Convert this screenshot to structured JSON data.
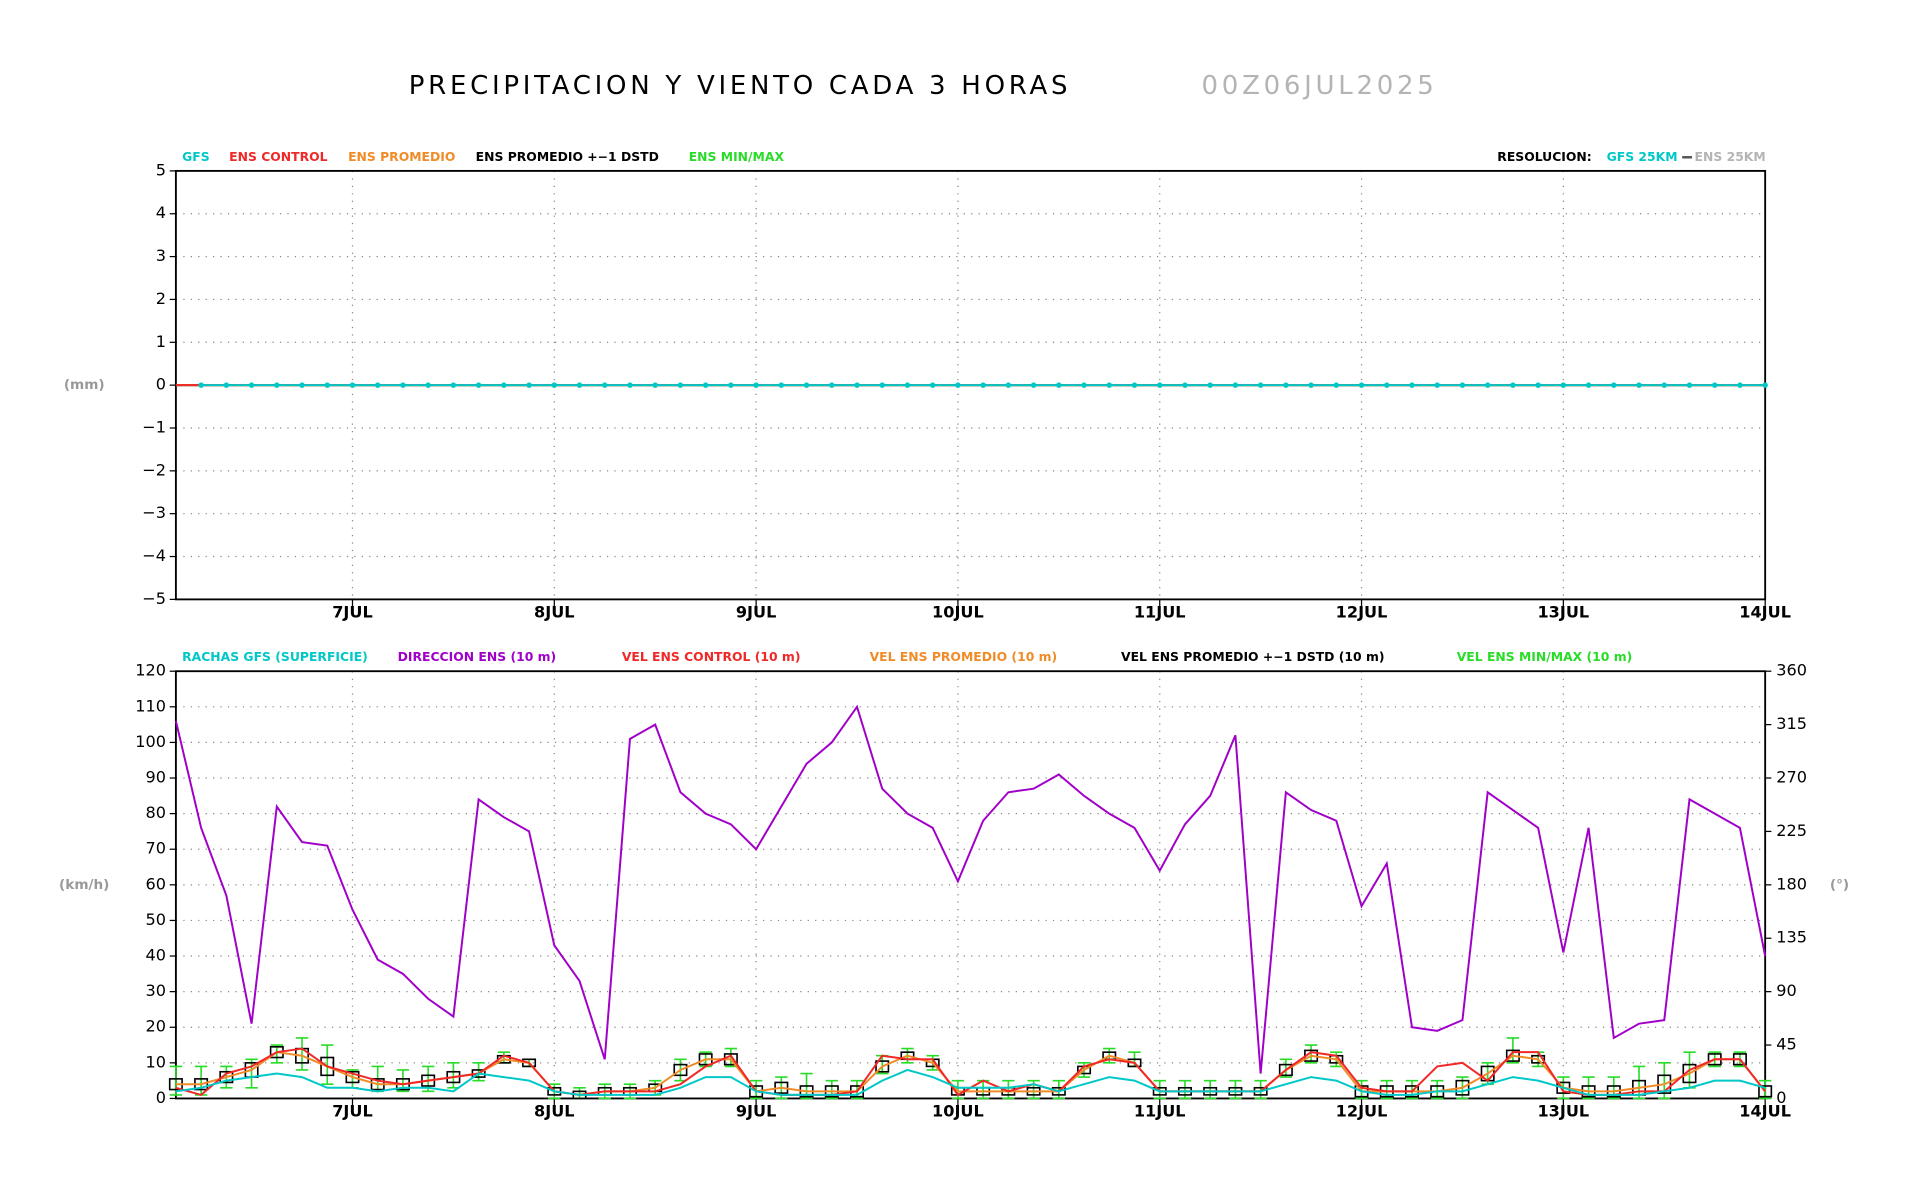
{
  "title": "PRECIPITACION Y VIENTO CADA 3 HORAS",
  "run": "00Z06JUL2025",
  "chart_data": [
    {
      "type": "line",
      "ylabel": "(mm)",
      "grid": true,
      "xlim": [
        6.125,
        14
      ],
      "xticks": [
        {
          "value": 7,
          "label": "7JUL"
        },
        {
          "value": 8,
          "label": "8JUL"
        },
        {
          "value": 9,
          "label": "9JUL"
        },
        {
          "value": 10,
          "label": "10JUL"
        },
        {
          "value": 11,
          "label": "11JUL"
        },
        {
          "value": 12,
          "label": "12JUL"
        },
        {
          "value": 13,
          "label": "13JUL"
        },
        {
          "value": 14,
          "label": "14JUL"
        }
      ],
      "ylim": [
        -5,
        5
      ],
      "yticks": [
        {
          "value": -5,
          "label": "−5"
        },
        {
          "value": -4,
          "label": "−4"
        },
        {
          "value": -3,
          "label": "−3"
        },
        {
          "value": -2,
          "label": "−2"
        },
        {
          "value": -1,
          "label": "−1"
        },
        0,
        1,
        2,
        3,
        4,
        5
      ],
      "x": [
        6.125,
        6.25,
        6.375,
        6.5,
        6.625,
        6.75,
        6.875,
        7,
        7.125,
        7.25,
        7.375,
        7.5,
        7.625,
        7.75,
        7.875,
        8,
        8.125,
        8.25,
        8.375,
        8.5,
        8.625,
        8.75,
        8.875,
        9,
        9.125,
        9.25,
        9.375,
        9.5,
        9.625,
        9.75,
        9.875,
        10,
        10.125,
        10.25,
        10.375,
        10.5,
        10.625,
        10.75,
        10.875,
        11,
        11.125,
        11.25,
        11.375,
        11.5,
        11.625,
        11.75,
        11.875,
        12,
        12.125,
        12.25,
        12.375,
        12.5,
        12.625,
        12.75,
        12.875,
        13,
        13.125,
        13.25,
        13.375,
        13.5,
        13.625,
        13.75,
        13.875,
        14
      ],
      "resolution": {
        "label": "RESOLUCION:",
        "items": [
          {
            "name": "GFS 25KM",
            "color": "#00c8c8"
          },
          {
            "name": "ENS 25KM",
            "color": "#b4b4b4"
          }
        ]
      },
      "series": [
        {
          "name": "GFS",
          "color": "#00c8c8",
          "markers": true,
          "values": [
            null,
            0,
            0,
            0,
            0,
            0,
            0,
            0,
            0,
            0,
            0,
            0,
            0,
            0,
            0,
            0,
            0,
            0,
            0,
            0,
            0,
            0,
            0,
            0,
            0,
            0,
            0,
            0,
            0,
            0,
            0,
            0,
            0,
            0,
            0,
            0,
            0,
            0,
            0,
            0,
            0,
            0,
            0,
            0,
            0,
            0,
            0,
            0,
            0,
            0,
            0,
            0,
            0,
            0,
            0,
            0,
            0,
            0,
            0,
            0,
            0,
            0,
            0,
            0
          ]
        },
        {
          "name": "ENS CONTROL",
          "color": "#f02828",
          "values": [
            0,
            0,
            0,
            0,
            0,
            0,
            0,
            0,
            0,
            0,
            0,
            0,
            0,
            0,
            0,
            0,
            0,
            0,
            0,
            0,
            0,
            0,
            0,
            0,
            0,
            0,
            0,
            0,
            0,
            0,
            0,
            0,
            0,
            0,
            0,
            0,
            0,
            0,
            0,
            0,
            0,
            0,
            0,
            0,
            0,
            0,
            0,
            0,
            0,
            0,
            0,
            0,
            0,
            0,
            0,
            0,
            0,
            0,
            0,
            0,
            0,
            0,
            0,
            0
          ]
        },
        {
          "name": "ENS PROMEDIO",
          "color": "#f08c28",
          "values": [
            0,
            0,
            0,
            0,
            0,
            0,
            0,
            0,
            0,
            0,
            0,
            0,
            0,
            0,
            0,
            0,
            0,
            0,
            0,
            0,
            0,
            0,
            0,
            0,
            0,
            0,
            0,
            0,
            0,
            0,
            0,
            0,
            0,
            0,
            0,
            0,
            0,
            0,
            0,
            0,
            0,
            0,
            0,
            0,
            0,
            0,
            0,
            0,
            0,
            0,
            0,
            0,
            0,
            0,
            0,
            0,
            0,
            0,
            0,
            0,
            0,
            0,
            0,
            0
          ]
        },
        {
          "name": "ENS PROMEDIO +−1 DSTD",
          "color": "#000000",
          "values": [
            0,
            0,
            0,
            0,
            0,
            0,
            0,
            0,
            0,
            0,
            0,
            0,
            0,
            0,
            0,
            0,
            0,
            0,
            0,
            0,
            0,
            0,
            0,
            0,
            0,
            0,
            0,
            0,
            0,
            0,
            0,
            0,
            0,
            0,
            0,
            0,
            0,
            0,
            0,
            0,
            0,
            0,
            0,
            0,
            0,
            0,
            0,
            0,
            0,
            0,
            0,
            0,
            0,
            0,
            0,
            0,
            0,
            0,
            0,
            0,
            0,
            0,
            0,
            0
          ]
        },
        {
          "name": "ENS MIN/MAX",
          "color": "#28dc28",
          "values": [
            0,
            0,
            0,
            0,
            0,
            0,
            0,
            0,
            0,
            0,
            0,
            0,
            0,
            0,
            0,
            0,
            0,
            0,
            0,
            0,
            0,
            0,
            0,
            0,
            0,
            0,
            0,
            0,
            0,
            0,
            0,
            0,
            0,
            0,
            0,
            0,
            0,
            0,
            0,
            0,
            0,
            0,
            0,
            0,
            0,
            0,
            0,
            0,
            0,
            0,
            0,
            0,
            0,
            0,
            0,
            0,
            0,
            0,
            0,
            0,
            0,
            0,
            0,
            0
          ]
        }
      ]
    },
    {
      "type": "line",
      "ylabel": "(km/h)",
      "y2label": "(°)",
      "grid": true,
      "xlim": [
        6.125,
        14
      ],
      "xticks": [
        {
          "value": 7,
          "label": "7JUL"
        },
        {
          "value": 8,
          "label": "8JUL"
        },
        {
          "value": 9,
          "label": "9JUL"
        },
        {
          "value": 10,
          "label": "10JUL"
        },
        {
          "value": 11,
          "label": "11JUL"
        },
        {
          "value": 12,
          "label": "12JUL"
        },
        {
          "value": 13,
          "label": "13JUL"
        },
        {
          "value": 14,
          "label": "14JUL"
        }
      ],
      "ylim": [
        0,
        120
      ],
      "yticks": [
        0,
        10,
        20,
        30,
        40,
        50,
        60,
        70,
        80,
        90,
        100,
        110,
        120
      ],
      "y2lim": [
        0,
        360
      ],
      "y2ticks": [
        0,
        45,
        90,
        135,
        180,
        225,
        270,
        315,
        360
      ],
      "x": [
        6.125,
        6.25,
        6.375,
        6.5,
        6.625,
        6.75,
        6.875,
        7,
        7.125,
        7.25,
        7.375,
        7.5,
        7.625,
        7.75,
        7.875,
        8,
        8.125,
        8.25,
        8.375,
        8.5,
        8.625,
        8.75,
        8.875,
        9,
        9.125,
        9.25,
        9.375,
        9.5,
        9.625,
        9.75,
        9.875,
        10,
        10.125,
        10.25,
        10.375,
        10.5,
        10.625,
        10.75,
        10.875,
        11,
        11.125,
        11.25,
        11.375,
        11.5,
        11.625,
        11.75,
        11.875,
        12,
        12.125,
        12.25,
        12.375,
        12.5,
        12.625,
        12.75,
        12.875,
        13,
        13.125,
        13.25,
        13.375,
        13.5,
        13.625,
        13.75,
        13.875,
        14
      ],
      "series": [
        {
          "name": "RACHAS GFS (SUPERFICIE)",
          "color": "#00c8c8",
          "values": [
            2,
            3,
            5,
            6,
            7,
            6,
            3,
            3,
            2,
            3,
            3,
            2,
            7,
            6,
            5,
            2,
            1,
            1,
            1,
            1,
            3,
            6,
            6,
            2,
            1,
            1,
            1,
            1,
            5,
            8,
            6,
            3,
            3,
            3,
            4,
            2,
            4,
            6,
            5,
            2,
            2,
            2,
            2,
            2,
            4,
            6,
            5,
            2,
            1,
            1,
            2,
            2,
            4,
            6,
            5,
            3,
            1,
            1,
            1,
            2,
            3,
            5,
            5,
            3
          ]
        },
        {
          "name": "DIRECCION ENS (10 m)",
          "color": "#a000c8",
          "axis": "y2",
          "values": [
            318,
            228,
            171,
            63,
            246,
            216,
            213,
            159,
            117,
            105,
            84,
            69,
            252,
            237,
            225,
            129,
            99,
            33,
            303,
            315,
            258,
            240,
            231,
            210,
            246,
            282,
            300,
            330,
            261,
            240,
            228,
            183,
            234,
            258,
            261,
            273,
            255,
            240,
            228,
            192,
            231,
            255,
            306,
            21,
            258,
            243,
            234,
            162,
            198,
            60,
            57,
            66,
            258,
            243,
            228,
            123,
            228,
            51,
            63,
            66,
            252,
            240,
            228,
            120
          ]
        },
        {
          "name": "VEL ENS CONTROL (10 m)",
          "color": "#f02828",
          "values": [
            3,
            1,
            7,
            9,
            13,
            14,
            9,
            7,
            5,
            4,
            5,
            6,
            7,
            12,
            10,
            2,
            1,
            2,
            2,
            2,
            4,
            9,
            12,
            2,
            1,
            1,
            1,
            2,
            12,
            11,
            11,
            1,
            5,
            2,
            4,
            2,
            9,
            11,
            10,
            2,
            2,
            2,
            2,
            2,
            8,
            13,
            12,
            3,
            2,
            2,
            9,
            10,
            5,
            13,
            13,
            2,
            1,
            1,
            2,
            2,
            8,
            11,
            11,
            2
          ]
        },
        {
          "name": "VEL ENS PROMEDIO (10 m)",
          "color": "#f08c28",
          "values": [
            4,
            4,
            6,
            8,
            13,
            12,
            9,
            6,
            4,
            4,
            5,
            6,
            7,
            11,
            10,
            2,
            1,
            2,
            2,
            3,
            8,
            11,
            11,
            2,
            3,
            2,
            2,
            2,
            9,
            12,
            10,
            2,
            2,
            2,
            2,
            2,
            8,
            12,
            10,
            2,
            2,
            2,
            2,
            2,
            8,
            12,
            11,
            2,
            2,
            2,
            2,
            3,
            7,
            12,
            11,
            3,
            2,
            2,
            3,
            4,
            7,
            11,
            11,
            2
          ]
        },
        {
          "name": "VEL ENS PROMEDIO +−1 DSTD (10 m)",
          "color": "#000000",
          "values": [
            4,
            4,
            6,
            8,
            13,
            12,
            9,
            6,
            4,
            4,
            5,
            6,
            7,
            11,
            10,
            2,
            1,
            2,
            2,
            3,
            8,
            11,
            11,
            2,
            3,
            2,
            2,
            2,
            9,
            12,
            10,
            2,
            2,
            2,
            2,
            2,
            8,
            12,
            10,
            2,
            2,
            2,
            2,
            2,
            8,
            12,
            11,
            2,
            2,
            2,
            2,
            3,
            7,
            12,
            11,
            3,
            2,
            2,
            3,
            4,
            7,
            11,
            11,
            2
          ],
          "std": [
            1.5,
            1.5,
            1.5,
            2,
            1.5,
            2,
            2.5,
            1.5,
            1.5,
            1.5,
            1.5,
            1.5,
            1,
            1,
            1,
            1,
            1,
            1,
            1,
            1,
            1.5,
            1.5,
            1.5,
            1.5,
            1.5,
            1.5,
            1.5,
            1.5,
            1.5,
            1,
            1,
            1,
            1,
            1,
            1,
            1,
            1,
            1,
            1,
            1,
            1,
            1,
            1,
            1,
            1.5,
            1.5,
            1,
            1.5,
            1.5,
            1.5,
            1.5,
            2,
            2,
            1.5,
            1,
            1.5,
            1.5,
            1.5,
            2,
            2.5,
            2.5,
            1.5,
            1.5,
            1.5
          ]
        },
        {
          "name": "VEL ENS MIN/MAX (10 m)",
          "color": "#28dc28",
          "min": [
            1,
            1,
            3,
            3,
            10,
            8,
            4,
            3,
            2,
            2,
            2,
            3,
            5,
            10,
            9,
            0,
            0,
            0,
            0,
            1,
            5,
            9,
            9,
            0,
            0,
            0,
            0,
            0,
            7,
            10,
            8,
            0,
            0,
            0,
            0,
            0,
            6,
            10,
            9,
            0,
            0,
            0,
            0,
            0,
            6,
            10,
            9,
            0,
            0,
            0,
            0,
            0,
            4,
            10,
            9,
            0,
            0,
            0,
            0,
            0,
            3,
            9,
            9,
            0
          ],
          "max": [
            9,
            9,
            9,
            11,
            15,
            17,
            15,
            8,
            9,
            8,
            9,
            10,
            10,
            13,
            11,
            4,
            3,
            4,
            4,
            5,
            11,
            13,
            14,
            5,
            6,
            7,
            5,
            5,
            12,
            14,
            12,
            5,
            5,
            5,
            5,
            5,
            10,
            14,
            13,
            5,
            5,
            5,
            5,
            5,
            11,
            15,
            13,
            5,
            5,
            5,
            5,
            6,
            10,
            17,
            13,
            6,
            6,
            6,
            9,
            10,
            13,
            13,
            13,
            5
          ]
        }
      ]
    }
  ]
}
